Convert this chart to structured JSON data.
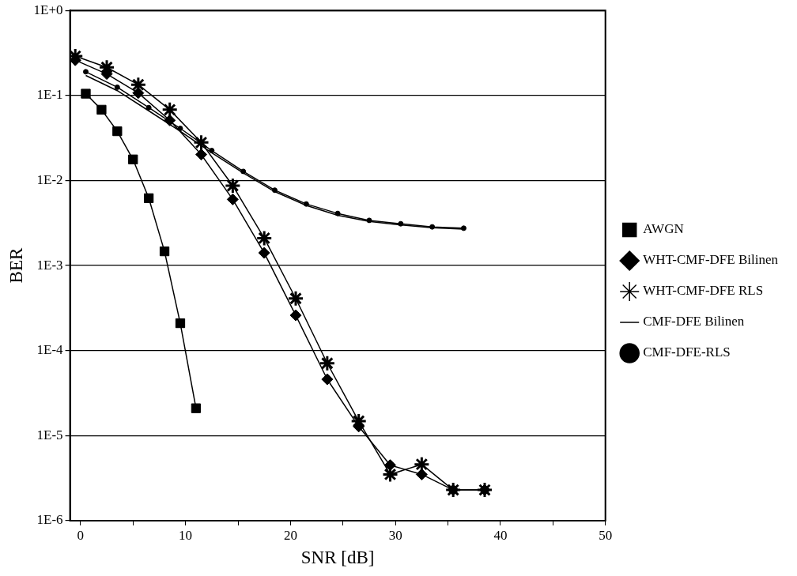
{
  "chart_data": {
    "type": "line",
    "xlabel": "SNR [dB]",
    "ylabel": "BER",
    "log": "y",
    "grid": "y",
    "legend": "right",
    "xlim": [
      -1,
      50
    ],
    "xticks": [
      0,
      {
        "value": 5,
        "label": null
      },
      10,
      {
        "value": 15,
        "label": null
      },
      20,
      {
        "value": 25,
        "label": null
      },
      30,
      {
        "value": 35,
        "label": null
      },
      40,
      {
        "value": 45,
        "label": null
      },
      50
    ],
    "ylim": [
      1e-06,
      1
    ],
    "yticks": [
      {
        "value": 1e-06,
        "label": "1E-6"
      },
      {
        "value": 1e-05,
        "label": "1E-5"
      },
      {
        "value": 0.0001,
        "label": "1E-4"
      },
      {
        "value": 0.001,
        "label": "1E-3"
      },
      {
        "value": 0.01,
        "label": "1E-2"
      },
      {
        "value": 0.1,
        "label": "1E-1"
      },
      {
        "value": 1,
        "label": "1E+0"
      }
    ],
    "series": [
      {
        "name": "AWGN",
        "color": "#000000",
        "marker": "square",
        "x": [
          0.5,
          2,
          3.5,
          5,
          6.5,
          8,
          9.5,
          11
        ],
        "values": [
          0.105,
          0.068,
          0.038,
          0.0177,
          0.0062,
          0.00147,
          0.00021,
          2.1e-05
        ]
      },
      {
        "name": "WHT-CMF-DFE Bilinen",
        "color": "#000000",
        "marker": "diamond",
        "x": [
          -0.5,
          2.5,
          5.5,
          8.5,
          11.5,
          14.5,
          17.5,
          20.5,
          23.5,
          26.5,
          29.5,
          32.5,
          35.5,
          38.5
        ],
        "values": [
          0.26,
          0.179,
          0.107,
          0.051,
          0.0202,
          0.006,
          0.00141,
          0.00026,
          4.6e-05,
          1.28e-05,
          4.5e-06,
          3.5e-06,
          2.3e-06,
          2.3e-06
        ]
      },
      {
        "name": "WHT-CMF-DFE RLS",
        "color": "#000000",
        "marker": "cross",
        "x": [
          -0.5,
          2.5,
          5.5,
          8.5,
          11.5,
          14.5,
          17.5,
          20.5,
          23.5,
          26.5,
          29.5,
          32.5,
          35.5,
          38.5
        ],
        "values": [
          0.29,
          0.214,
          0.134,
          0.068,
          0.028,
          0.0087,
          0.0021,
          0.00041,
          7.1e-05,
          1.48e-05,
          3.5e-06,
          4.6e-06,
          2.3e-06,
          2.3e-06
        ]
      },
      {
        "name": "CMF-DFE Bilinen",
        "color": "#000000",
        "marker": "none",
        "x": [
          0.5,
          3.5,
          6.5,
          9.5,
          12.5,
          15.5,
          18.5,
          21.5,
          24.5,
          27.5,
          30.5,
          33.5,
          36.5
        ],
        "values": [
          0.172,
          0.114,
          0.066,
          0.038,
          0.0212,
          0.0123,
          0.0074,
          0.0051,
          0.0039,
          0.0033,
          0.003,
          0.00278,
          0.00268
        ]
      },
      {
        "name": "CMF-DFE-RLS",
        "color": "#000000",
        "marker": "circle",
        "x": [
          0.5,
          3.5,
          6.5,
          9.5,
          12.5,
          15.5,
          18.5,
          21.5,
          24.5,
          27.5,
          30.5,
          33.5,
          36.5
        ],
        "values": [
          0.19,
          0.125,
          0.072,
          0.041,
          0.0225,
          0.0128,
          0.0077,
          0.0053,
          0.0041,
          0.0034,
          0.0031,
          0.00285,
          0.00275
        ]
      }
    ]
  }
}
